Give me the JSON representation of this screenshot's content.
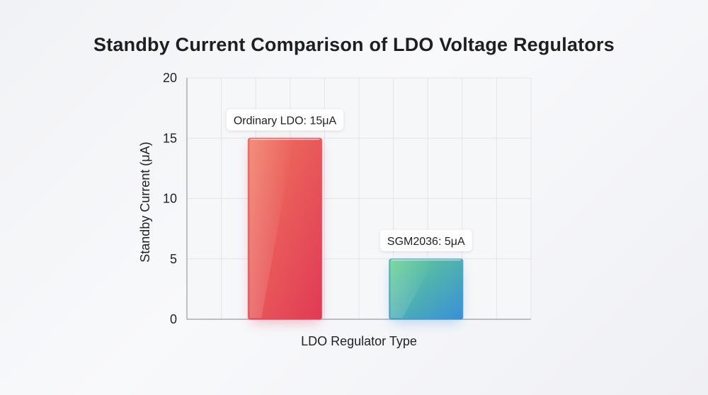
{
  "chart_data": {
    "type": "bar",
    "title": "Standby Current Comparison of LDO Voltage Regulators",
    "xlabel": "LDO Regulator Type",
    "ylabel": "Standby Current (μA)",
    "ylim": [
      0,
      20
    ],
    "yticks": [
      0,
      5,
      10,
      15,
      20
    ],
    "grid": true,
    "categories": [
      "Ordinary LDO",
      "SGM2036"
    ],
    "values": [
      15,
      5
    ],
    "data_labels": [
      "Ordinary LDO: 15μA",
      "SGM2036: 5μA"
    ],
    "colors": {
      "Ordinary LDO": [
        "#f0765e",
        "#e03a55"
      ],
      "SGM2036": [
        "#63d08c",
        "#3a8fd8"
      ]
    }
  }
}
